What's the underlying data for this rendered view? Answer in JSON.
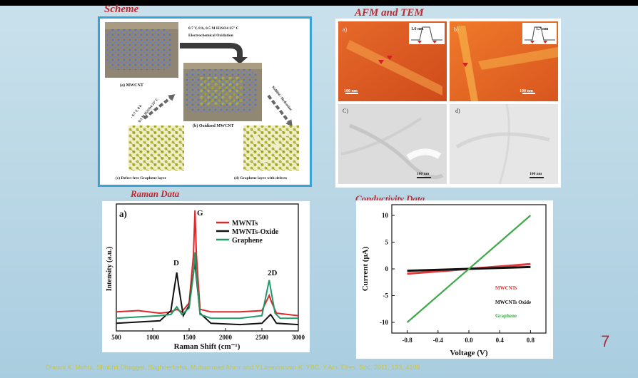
{
  "slide": {
    "scheme_title": "Scheme",
    "afm_title": "AFM and TEM",
    "raman_title": "Raman Data",
    "conductivity_title": "Conductivity Data",
    "page_number": "7",
    "footer": "Dhvani K. Mehta, Shobhit Dhaggat, Sagheerbeha, Muhammad Ahmr and Y.Lasavinovan K. YBC. Y.Am. Elres. Soc. 2011, 133, 4109"
  },
  "scheme": {
    "step1_line1": "0.7 V, 8 h, 0.5 M H2SO4 25° C",
    "step1_line2": "Electrochemical Oxidation",
    "left_arrow_line1": "- 0.7 V, 8 h",
    "left_arrow_line2": "0.5 M H2SO4 25° C",
    "right_arrow": "NaBH4 / Hydrazine",
    "labels": {
      "a": "(a) MWCNT",
      "b": "(b) Oxidized MWCNT",
      "c": "(c) Defect free Graphene layer",
      "d": "(d) Graphene layer with defects"
    }
  },
  "afm_tem": {
    "a_label": "a)",
    "b_label": "b)",
    "c_label": "C)",
    "d_label": "d)",
    "a_height": "1.6 nm",
    "b_height": "1.7 nm",
    "a_scale": "100 nm",
    "b_scale": "100 nm",
    "c_scale": "100 nm",
    "d_scale": "100 nm"
  },
  "raman": {
    "panel_label": "a)",
    "peak_D": "D",
    "peak_G": "G",
    "peak_2D": "2D"
  },
  "conductivity_labels": {
    "mwcnts": "MWCNTs",
    "oxide": "MWCNTs Oxide",
    "graphene": "Graphene"
  },
  "chart_data": [
    {
      "type": "line",
      "title": "Raman Data",
      "xlabel": "Raman Shift (cm⁻¹)",
      "ylabel": "Intensity (a.u.)",
      "xlim": [
        500,
        3000
      ],
      "xticks": [
        500,
        1000,
        1500,
        2000,
        2500,
        3000
      ],
      "legend_position": "top-right",
      "series": [
        {
          "name": "MWNTs",
          "color": "#e0282a",
          "x": [
            500,
            800,
            1100,
            1250,
            1330,
            1400,
            1500,
            1560,
            1580,
            1600,
            1650,
            1800,
            2200,
            2500,
            2600,
            2630,
            2700,
            3000
          ],
          "y": [
            0.15,
            0.16,
            0.14,
            0.15,
            0.17,
            0.15,
            0.22,
            0.6,
            0.95,
            0.6,
            0.17,
            0.15,
            0.15,
            0.16,
            0.28,
            0.23,
            0.14,
            0.12
          ]
        },
        {
          "name": "MWNTs-Oxide",
          "color": "#111111",
          "x": [
            500,
            800,
            1100,
            1250,
            1300,
            1330,
            1360,
            1420,
            1500,
            1560,
            1580,
            1600,
            1650,
            1800,
            2200,
            2500,
            2620,
            2700,
            3000
          ],
          "y": [
            0.06,
            0.07,
            0.08,
            0.16,
            0.35,
            0.46,
            0.34,
            0.12,
            0.2,
            0.46,
            0.54,
            0.42,
            0.14,
            0.06,
            0.05,
            0.06,
            0.13,
            0.06,
            0.05
          ]
        },
        {
          "name": "Graphene",
          "color": "#1f9a68",
          "x": [
            500,
            800,
            1100,
            1250,
            1330,
            1400,
            1500,
            1560,
            1580,
            1600,
            1650,
            1800,
            2200,
            2500,
            2600,
            2630,
            2680,
            2750,
            3000
          ],
          "y": [
            0.1,
            0.11,
            0.12,
            0.13,
            0.19,
            0.13,
            0.18,
            0.45,
            0.62,
            0.45,
            0.13,
            0.1,
            0.1,
            0.12,
            0.4,
            0.3,
            0.14,
            0.1,
            0.1
          ]
        }
      ]
    },
    {
      "type": "line",
      "title": "Conductivity Data",
      "xlabel": "Voltage (V)",
      "ylabel": "Current (μA)",
      "xlim": [
        -1.0,
        1.0
      ],
      "ylim": [
        -12,
        12
      ],
      "xticks": [
        -0.8,
        -0.4,
        0.0,
        0.4,
        0.8
      ],
      "yticks": [
        -10,
        -5,
        0,
        5,
        10
      ],
      "series": [
        {
          "name": "MWCNTs",
          "color": "#e03a3a",
          "x": [
            -0.8,
            0.8
          ],
          "y": [
            -0.9,
            0.9
          ]
        },
        {
          "name": "MWCNTs Oxide",
          "color": "#111111",
          "x": [
            -0.8,
            0.8
          ],
          "y": [
            -0.35,
            0.35
          ]
        },
        {
          "name": "Graphene",
          "color": "#3ea84a",
          "x": [
            -0.8,
            0.8
          ],
          "y": [
            -10,
            10
          ]
        }
      ]
    }
  ]
}
